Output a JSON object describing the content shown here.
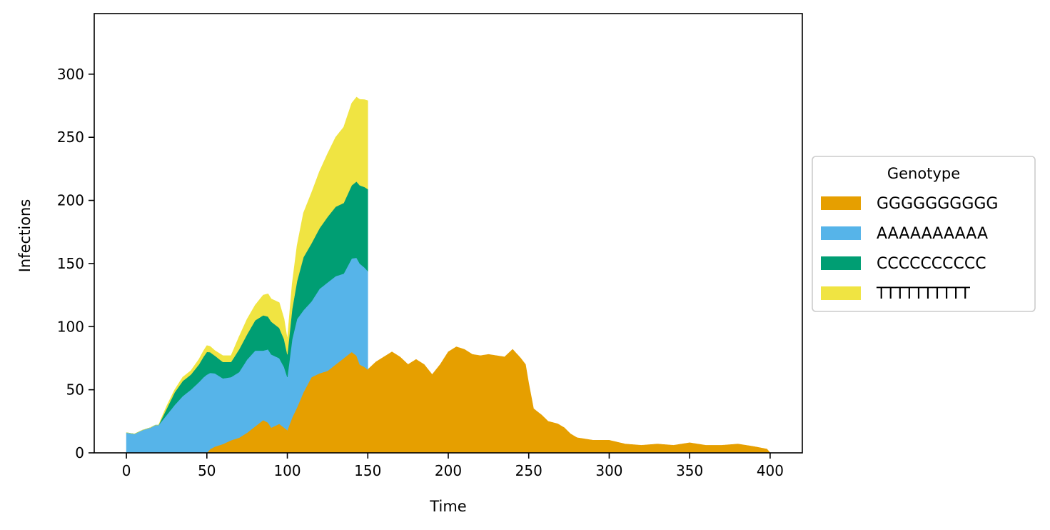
{
  "chart_data": {
    "type": "area",
    "stacked": true,
    "title": "",
    "xlabel": "Time",
    "ylabel": "Infections",
    "xlim": [
      -20,
      420
    ],
    "ylim": [
      0,
      348
    ],
    "xticks": [
      0,
      50,
      100,
      150,
      200,
      250,
      300,
      350,
      400
    ],
    "yticks": [
      0,
      50,
      100,
      150,
      200,
      250,
      300
    ],
    "grid": false,
    "legend": {
      "title": "Genotype",
      "placement": "center-right-outside"
    },
    "series": [
      {
        "name": "GGGGGGGGGG",
        "color": "#E69F00",
        "points": [
          [
            50,
            0
          ],
          [
            52,
            3
          ],
          [
            55,
            5
          ],
          [
            60,
            7
          ],
          [
            65,
            10
          ],
          [
            70,
            12
          ],
          [
            75,
            16
          ],
          [
            80,
            21
          ],
          [
            85,
            26
          ],
          [
            88,
            24
          ],
          [
            90,
            20
          ],
          [
            95,
            23
          ],
          [
            98,
            20
          ],
          [
            100,
            18
          ],
          [
            103,
            28
          ],
          [
            106,
            36
          ],
          [
            110,
            48
          ],
          [
            115,
            60
          ],
          [
            120,
            63
          ],
          [
            125,
            65
          ],
          [
            130,
            70
          ],
          [
            135,
            75
          ],
          [
            140,
            80
          ],
          [
            143,
            77
          ],
          [
            145,
            70
          ],
          [
            148,
            68
          ],
          [
            150,
            66
          ],
          [
            155,
            72
          ],
          [
            160,
            76
          ],
          [
            165,
            80
          ],
          [
            170,
            76
          ],
          [
            175,
            70
          ],
          [
            180,
            74
          ],
          [
            185,
            70
          ],
          [
            190,
            62
          ],
          [
            195,
            70
          ],
          [
            200,
            80
          ],
          [
            205,
            84
          ],
          [
            210,
            82
          ],
          [
            215,
            78
          ],
          [
            220,
            77
          ],
          [
            225,
            78
          ],
          [
            230,
            77
          ],
          [
            235,
            76
          ],
          [
            240,
            82
          ],
          [
            245,
            75
          ],
          [
            248,
            70
          ],
          [
            250,
            55
          ],
          [
            253,
            35
          ],
          [
            258,
            30
          ],
          [
            262,
            25
          ],
          [
            268,
            23
          ],
          [
            272,
            20
          ],
          [
            276,
            15
          ],
          [
            280,
            12
          ],
          [
            290,
            10
          ],
          [
            300,
            10
          ],
          [
            310,
            7
          ],
          [
            320,
            6
          ],
          [
            330,
            7
          ],
          [
            340,
            6
          ],
          [
            350,
            8
          ],
          [
            360,
            6
          ],
          [
            370,
            6
          ],
          [
            380,
            7
          ],
          [
            390,
            5
          ],
          [
            398,
            3
          ],
          [
            400,
            0
          ]
        ]
      },
      {
        "name": "AAAAAAAAAA",
        "color": "#56B4E9",
        "points": [
          [
            0,
            16
          ],
          [
            5,
            15
          ],
          [
            10,
            18
          ],
          [
            15,
            20
          ],
          [
            18,
            22
          ],
          [
            20,
            22
          ],
          [
            25,
            30
          ],
          [
            30,
            38
          ],
          [
            35,
            45
          ],
          [
            40,
            50
          ],
          [
            45,
            56
          ],
          [
            48,
            60
          ],
          [
            50,
            62
          ],
          [
            55,
            58
          ],
          [
            60,
            52
          ],
          [
            65,
            50
          ],
          [
            70,
            52
          ],
          [
            75,
            58
          ],
          [
            80,
            60
          ],
          [
            85,
            55
          ],
          [
            88,
            58
          ],
          [
            90,
            58
          ],
          [
            95,
            52
          ],
          [
            98,
            48
          ],
          [
            100,
            42
          ],
          [
            103,
            62
          ],
          [
            106,
            70
          ],
          [
            110,
            65
          ],
          [
            115,
            60
          ],
          [
            120,
            67
          ],
          [
            125,
            70
          ],
          [
            130,
            70
          ],
          [
            135,
            67
          ],
          [
            140,
            74
          ],
          [
            145,
            80
          ],
          [
            150,
            78
          ]
        ]
      },
      {
        "name": "CCCCCCCCCC",
        "color": "#009E73",
        "points": [
          [
            0,
            0
          ],
          [
            10,
            0
          ],
          [
            20,
            0
          ],
          [
            22,
            2
          ],
          [
            25,
            5
          ],
          [
            30,
            10
          ],
          [
            35,
            12
          ],
          [
            40,
            12
          ],
          [
            45,
            14
          ],
          [
            50,
            18
          ],
          [
            55,
            14
          ],
          [
            60,
            13
          ],
          [
            65,
            12
          ],
          [
            70,
            18
          ],
          [
            75,
            20
          ],
          [
            80,
            24
          ],
          [
            85,
            28
          ],
          [
            88,
            26
          ],
          [
            90,
            26
          ],
          [
            95,
            24
          ],
          [
            98,
            22
          ],
          [
            100,
            18
          ],
          [
            103,
            24
          ],
          [
            106,
            30
          ],
          [
            110,
            42
          ],
          [
            115,
            46
          ],
          [
            120,
            48
          ],
          [
            125,
            52
          ],
          [
            130,
            55
          ],
          [
            135,
            56
          ],
          [
            140,
            58
          ],
          [
            145,
            62
          ],
          [
            150,
            65
          ]
        ]
      },
      {
        "name": "TTTTTTTTTT",
        "color": "#F0E442",
        "points": [
          [
            0,
            0
          ],
          [
            20,
            0
          ],
          [
            22,
            1
          ],
          [
            25,
            2
          ],
          [
            30,
            2
          ],
          [
            35,
            3
          ],
          [
            40,
            3
          ],
          [
            45,
            4
          ],
          [
            50,
            5
          ],
          [
            55,
            4
          ],
          [
            60,
            5
          ],
          [
            65,
            5
          ],
          [
            70,
            10
          ],
          [
            75,
            12
          ],
          [
            80,
            12
          ],
          [
            85,
            16
          ],
          [
            88,
            18
          ],
          [
            90,
            18
          ],
          [
            95,
            20
          ],
          [
            98,
            16
          ],
          [
            100,
            12
          ],
          [
            103,
            20
          ],
          [
            106,
            28
          ],
          [
            110,
            35
          ],
          [
            115,
            40
          ],
          [
            120,
            45
          ],
          [
            125,
            50
          ],
          [
            130,
            55
          ],
          [
            135,
            60
          ],
          [
            140,
            65
          ],
          [
            145,
            68
          ],
          [
            150,
            70
          ]
        ]
      }
    ]
  }
}
